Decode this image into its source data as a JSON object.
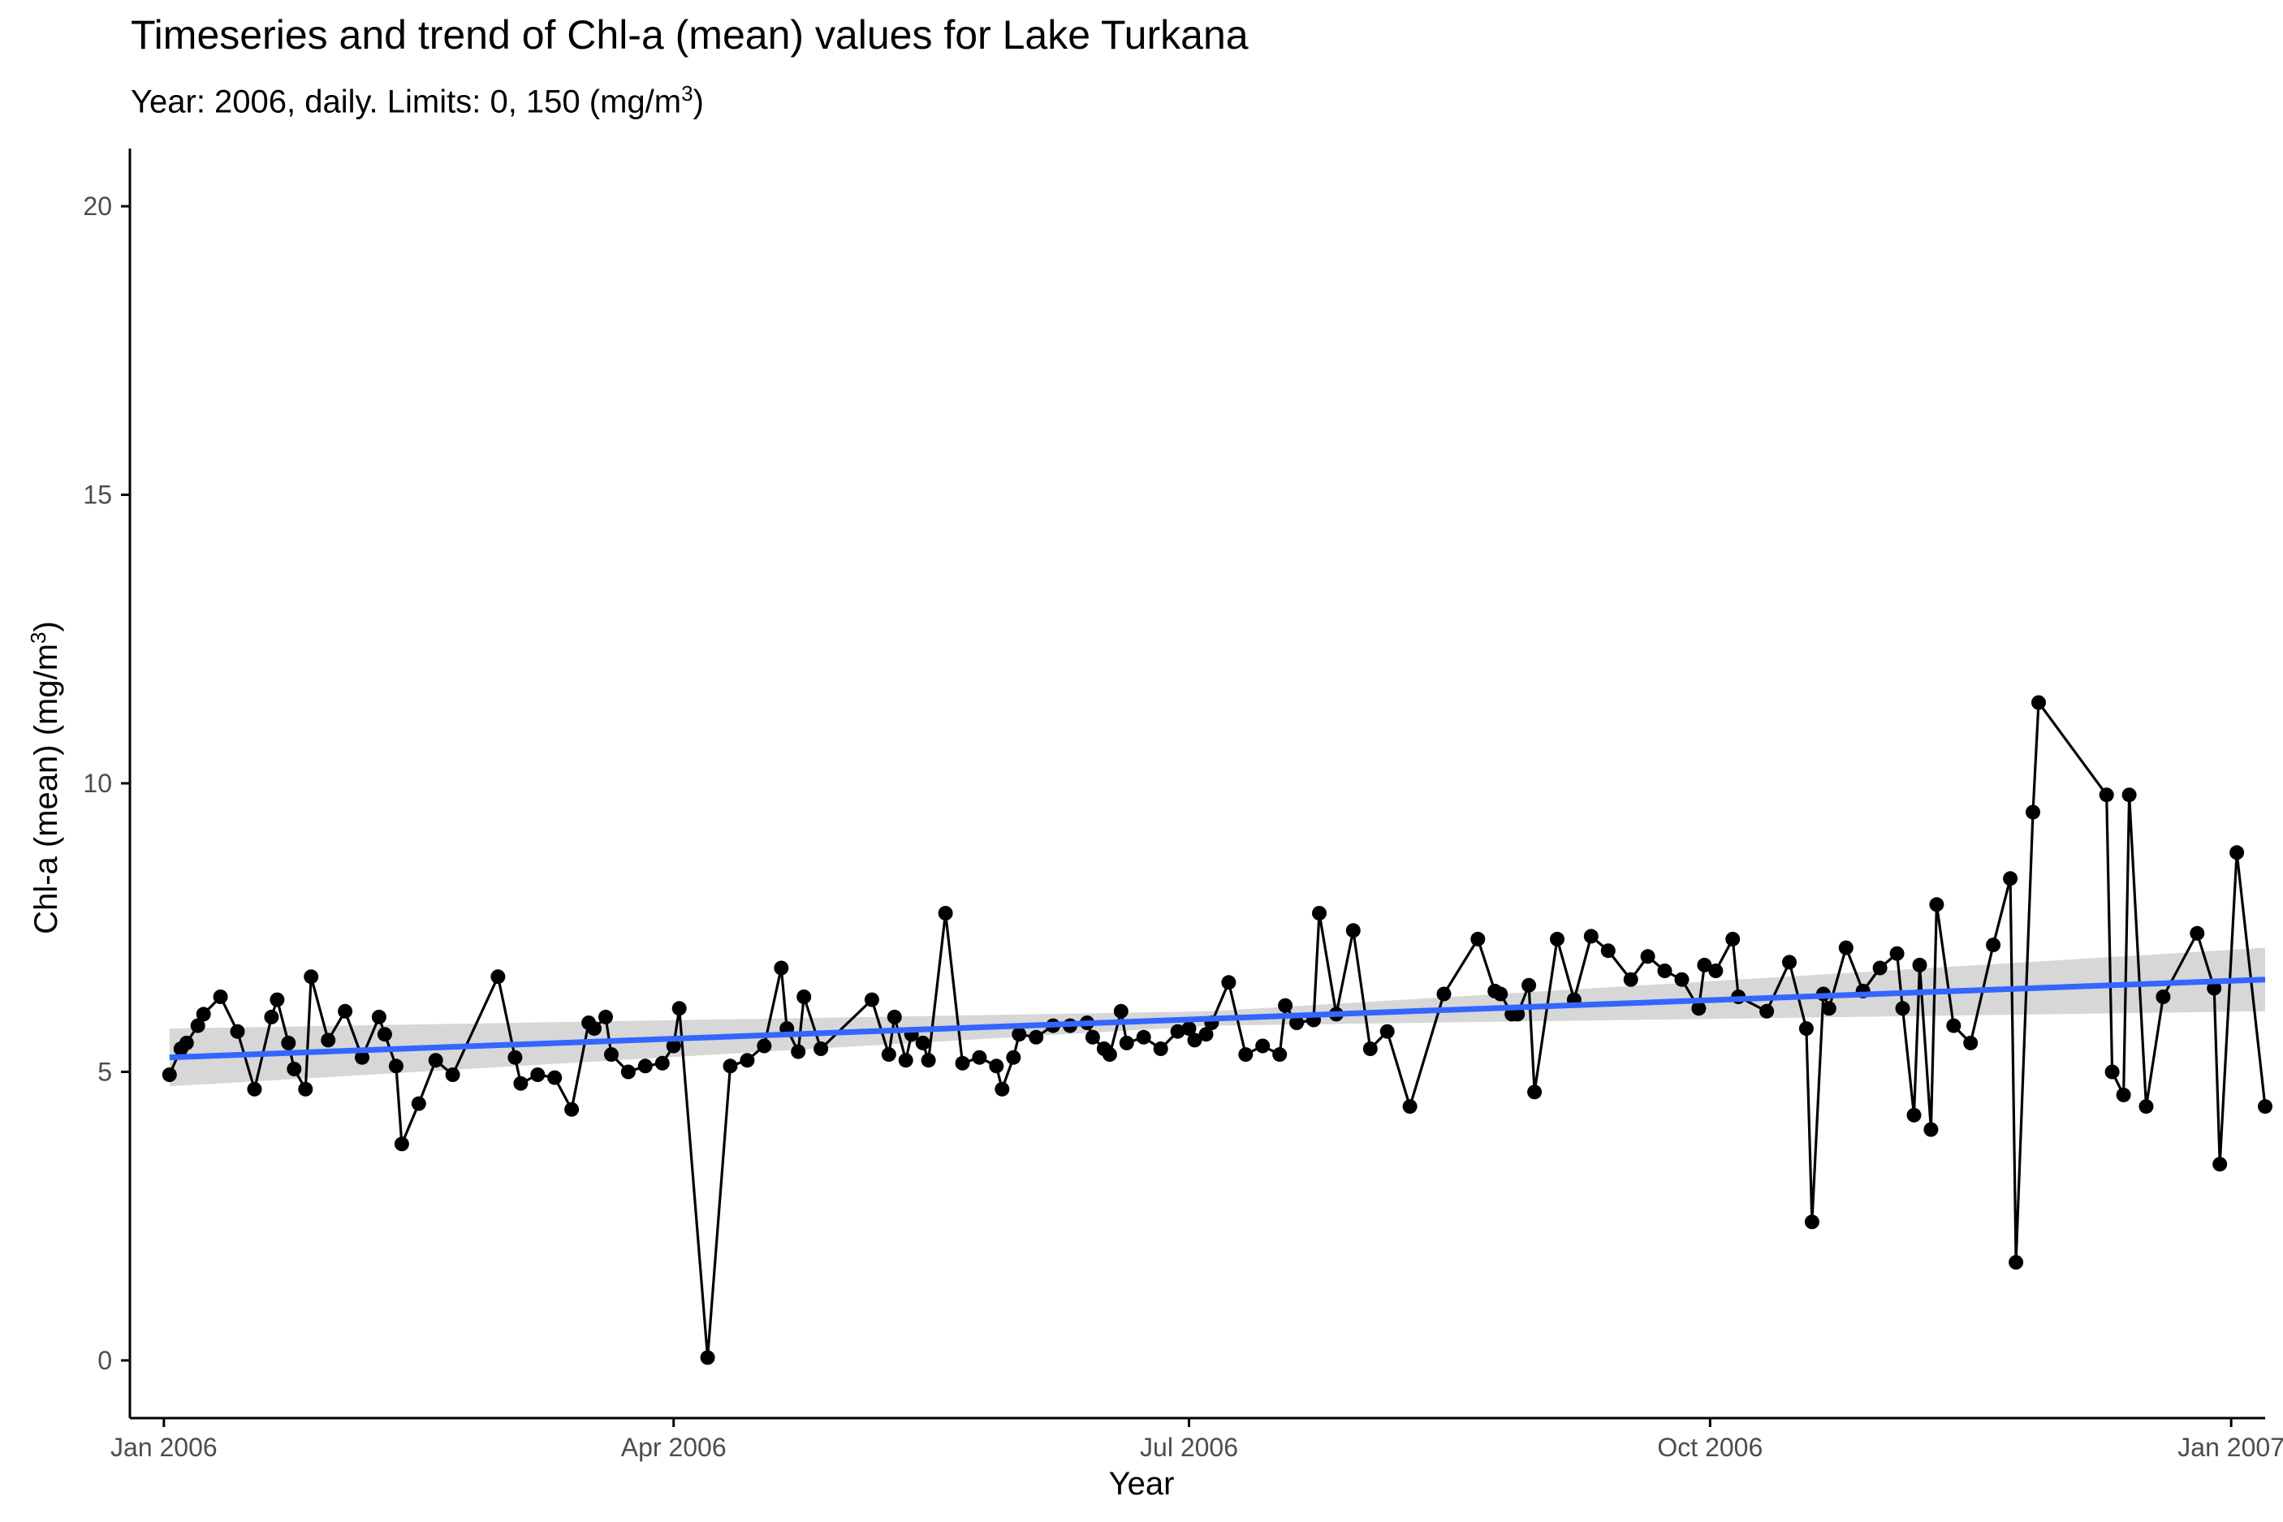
{
  "chart_data": {
    "type": "line",
    "title": "Timeseries and trend of Chl-a (mean) values for Lake Turkana",
    "subtitle": "Year: 2006, daily. Limits: 0, 150 (mg/m",
    "subtitle_sup": "3",
    "subtitle_end": ")",
    "xlabel": "Year",
    "ylabel": "Chl-a (mean) (mg/m",
    "ylabel_sup": "3",
    "ylabel_end": ")",
    "x_axis": {
      "type": "date",
      "range": [
        "2005-12-26",
        "2007-01-07"
      ],
      "ticks": [
        {
          "date": "2006-01-01",
          "label": "Jan 2006"
        },
        {
          "date": "2006-04-01",
          "label": "Apr 2006"
        },
        {
          "date": "2006-07-01",
          "label": "Jul 2006"
        },
        {
          "date": "2006-10-01",
          "label": "Oct 2006"
        },
        {
          "date": "2007-01-01",
          "label": "Jan 2007"
        }
      ]
    },
    "y_axis": {
      "range": [
        -1,
        21
      ],
      "ticks": [
        0,
        5,
        10,
        15,
        20
      ]
    },
    "grid": false,
    "colors": {
      "series": "#000000",
      "trend": "#3366ff",
      "confidence_band": "#d3d3d3",
      "axis": "#000000",
      "tick_label": "#4d4d4d"
    },
    "series": [
      {
        "style": "line+points",
        "points": [
          [
            "2006-01-02",
            4.95
          ],
          [
            "2006-01-04",
            5.4
          ],
          [
            "2006-01-05",
            5.5
          ],
          [
            "2006-01-07",
            5.8
          ],
          [
            "2006-01-08",
            6.0
          ],
          [
            "2006-01-11",
            6.3
          ],
          [
            "2006-01-14",
            5.7
          ],
          [
            "2006-01-17",
            4.7
          ],
          [
            "2006-01-20",
            5.95
          ],
          [
            "2006-01-21",
            6.25
          ],
          [
            "2006-01-23",
            5.5
          ],
          [
            "2006-01-24",
            5.05
          ],
          [
            "2006-01-26",
            4.7
          ],
          [
            "2006-01-27",
            6.65
          ],
          [
            "2006-01-30",
            5.55
          ],
          [
            "2006-02-02",
            6.05
          ],
          [
            "2006-02-05",
            5.25
          ],
          [
            "2006-02-08",
            5.95
          ],
          [
            "2006-02-09",
            5.65
          ],
          [
            "2006-02-11",
            5.1
          ],
          [
            "2006-02-12",
            3.75
          ],
          [
            "2006-02-15",
            4.45
          ],
          [
            "2006-02-18",
            5.2
          ],
          [
            "2006-02-21",
            4.95
          ],
          [
            "2006-03-01",
            6.65
          ],
          [
            "2006-03-04",
            5.25
          ],
          [
            "2006-03-05",
            4.8
          ],
          [
            "2006-03-08",
            4.95
          ],
          [
            "2006-03-11",
            4.9
          ],
          [
            "2006-03-14",
            4.35
          ],
          [
            "2006-03-17",
            5.85
          ],
          [
            "2006-03-18",
            5.75
          ],
          [
            "2006-03-20",
            5.95
          ],
          [
            "2006-03-21",
            5.3
          ],
          [
            "2006-03-24",
            5.0
          ],
          [
            "2006-03-27",
            5.1
          ],
          [
            "2006-03-30",
            5.15
          ],
          [
            "2006-04-01",
            5.45
          ],
          [
            "2006-04-02",
            6.1
          ],
          [
            "2006-04-07",
            0.05
          ],
          [
            "2006-04-11",
            5.1
          ],
          [
            "2006-04-14",
            5.2
          ],
          [
            "2006-04-17",
            5.45
          ],
          [
            "2006-04-20",
            6.8
          ],
          [
            "2006-04-21",
            5.75
          ],
          [
            "2006-04-23",
            5.35
          ],
          [
            "2006-04-24",
            6.3
          ],
          [
            "2006-04-27",
            5.4
          ],
          [
            "2006-05-06",
            6.25
          ],
          [
            "2006-05-09",
            5.3
          ],
          [
            "2006-05-10",
            5.95
          ],
          [
            "2006-05-12",
            5.2
          ],
          [
            "2006-05-13",
            5.65
          ],
          [
            "2006-05-15",
            5.5
          ],
          [
            "2006-05-16",
            5.2
          ],
          [
            "2006-05-19",
            7.75
          ],
          [
            "2006-05-22",
            5.15
          ],
          [
            "2006-05-25",
            5.25
          ],
          [
            "2006-05-28",
            5.1
          ],
          [
            "2006-05-29",
            4.7
          ],
          [
            "2006-05-31",
            5.25
          ],
          [
            "2006-06-01",
            5.65
          ],
          [
            "2006-06-04",
            5.6
          ],
          [
            "2006-06-07",
            5.8
          ],
          [
            "2006-06-10",
            5.8
          ],
          [
            "2006-06-13",
            5.85
          ],
          [
            "2006-06-14",
            5.6
          ],
          [
            "2006-06-16",
            5.4
          ],
          [
            "2006-06-17",
            5.3
          ],
          [
            "2006-06-19",
            6.05
          ],
          [
            "2006-06-20",
            5.5
          ],
          [
            "2006-06-23",
            5.6
          ],
          [
            "2006-06-26",
            5.4
          ],
          [
            "2006-06-29",
            5.7
          ],
          [
            "2006-07-01",
            5.75
          ],
          [
            "2006-07-02",
            5.55
          ],
          [
            "2006-07-04",
            5.65
          ],
          [
            "2006-07-05",
            5.85
          ],
          [
            "2006-07-08",
            6.55
          ],
          [
            "2006-07-11",
            5.3
          ],
          [
            "2006-07-14",
            5.45
          ],
          [
            "2006-07-17",
            5.3
          ],
          [
            "2006-07-18",
            6.15
          ],
          [
            "2006-07-20",
            5.85
          ],
          [
            "2006-07-23",
            5.9
          ],
          [
            "2006-07-24",
            7.75
          ],
          [
            "2006-07-27",
            6.0
          ],
          [
            "2006-07-30",
            7.45
          ],
          [
            "2006-08-02",
            5.4
          ],
          [
            "2006-08-05",
            5.7
          ],
          [
            "2006-08-09",
            4.4
          ],
          [
            "2006-08-15",
            6.35
          ],
          [
            "2006-08-21",
            7.3
          ],
          [
            "2006-08-24",
            6.4
          ],
          [
            "2006-08-25",
            6.35
          ],
          [
            "2006-08-27",
            6.0
          ],
          [
            "2006-08-28",
            6.0
          ],
          [
            "2006-08-30",
            6.5
          ],
          [
            "2006-08-31",
            4.65
          ],
          [
            "2006-09-04",
            7.3
          ],
          [
            "2006-09-07",
            6.25
          ],
          [
            "2006-09-10",
            7.35
          ],
          [
            "2006-09-13",
            7.1
          ],
          [
            "2006-09-17",
            6.6
          ],
          [
            "2006-09-20",
            7.0
          ],
          [
            "2006-09-23",
            6.75
          ],
          [
            "2006-09-26",
            6.6
          ],
          [
            "2006-09-29",
            6.1
          ],
          [
            "2006-09-30",
            6.85
          ],
          [
            "2006-10-02",
            6.75
          ],
          [
            "2006-10-05",
            7.3
          ],
          [
            "2006-10-06",
            6.3
          ],
          [
            "2006-10-11",
            6.05
          ],
          [
            "2006-10-15",
            6.9
          ],
          [
            "2006-10-18",
            5.75
          ],
          [
            "2006-10-19",
            2.4
          ],
          [
            "2006-10-21",
            6.35
          ],
          [
            "2006-10-22",
            6.1
          ],
          [
            "2006-10-25",
            7.15
          ],
          [
            "2006-10-28",
            6.4
          ],
          [
            "2006-10-31",
            6.8
          ],
          [
            "2006-11-03",
            7.05
          ],
          [
            "2006-11-04",
            6.1
          ],
          [
            "2006-11-06",
            4.25
          ],
          [
            "2006-11-07",
            6.85
          ],
          [
            "2006-11-09",
            4.0
          ],
          [
            "2006-11-10",
            7.9
          ],
          [
            "2006-11-13",
            5.8
          ],
          [
            "2006-11-16",
            5.5
          ],
          [
            "2006-11-20",
            7.2
          ],
          [
            "2006-11-23",
            8.35
          ],
          [
            "2006-11-24",
            1.7
          ],
          [
            "2006-11-27",
            9.5
          ],
          [
            "2006-11-28",
            11.4
          ],
          [
            "2006-12-10",
            9.8
          ],
          [
            "2006-12-11",
            5.0
          ],
          [
            "2006-12-13",
            4.6
          ],
          [
            "2006-12-14",
            9.8
          ],
          [
            "2006-12-17",
            4.4
          ],
          [
            "2006-12-20",
            6.3
          ],
          [
            "2006-12-26",
            7.4
          ],
          [
            "2006-12-29",
            6.45
          ],
          [
            "2006-12-30",
            3.4
          ],
          [
            "2007-01-02",
            8.8
          ],
          [
            "2007-01-07",
            4.4
          ]
        ]
      },
      {
        "style": "trend",
        "method": "linear",
        "points": [
          [
            "2006-01-02",
            5.25
          ],
          [
            "2007-01-07",
            6.6
          ]
        ],
        "band_lower": [
          [
            "2006-01-02",
            4.75
          ],
          [
            "2006-07-05",
            5.8
          ],
          [
            "2007-01-07",
            6.05
          ]
        ],
        "band_upper": [
          [
            "2006-01-02",
            5.75
          ],
          [
            "2006-07-05",
            6.05
          ],
          [
            "2007-01-07",
            7.15
          ]
        ]
      }
    ]
  }
}
